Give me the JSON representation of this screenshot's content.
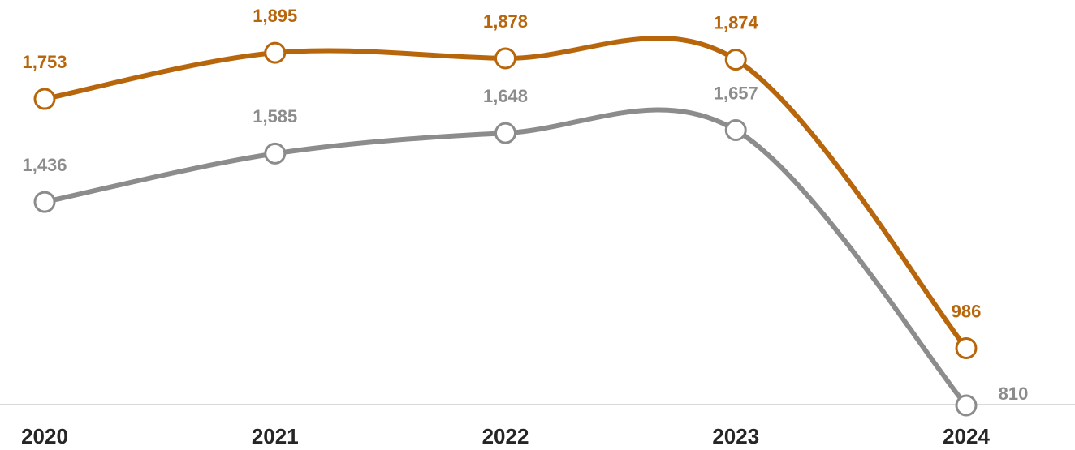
{
  "chart_data": {
    "type": "line",
    "categories": [
      "2020",
      "2021",
      "2022",
      "2023",
      "2024"
    ],
    "series": [
      {
        "color": "#b8660b",
        "values": [
          1753,
          1895,
          1878,
          1874,
          986
        ],
        "value_labels": [
          "1,753",
          "1,895",
          "1,878",
          "1,874",
          "986"
        ]
      },
      {
        "color": "#8c8c8c",
        "values": [
          1436,
          1585,
          1648,
          1657,
          810
        ],
        "value_labels": [
          "1,436",
          "1,585",
          "1,648",
          "1,657",
          "810"
        ]
      }
    ],
    "ylim": [
      800,
      2050
    ]
  }
}
